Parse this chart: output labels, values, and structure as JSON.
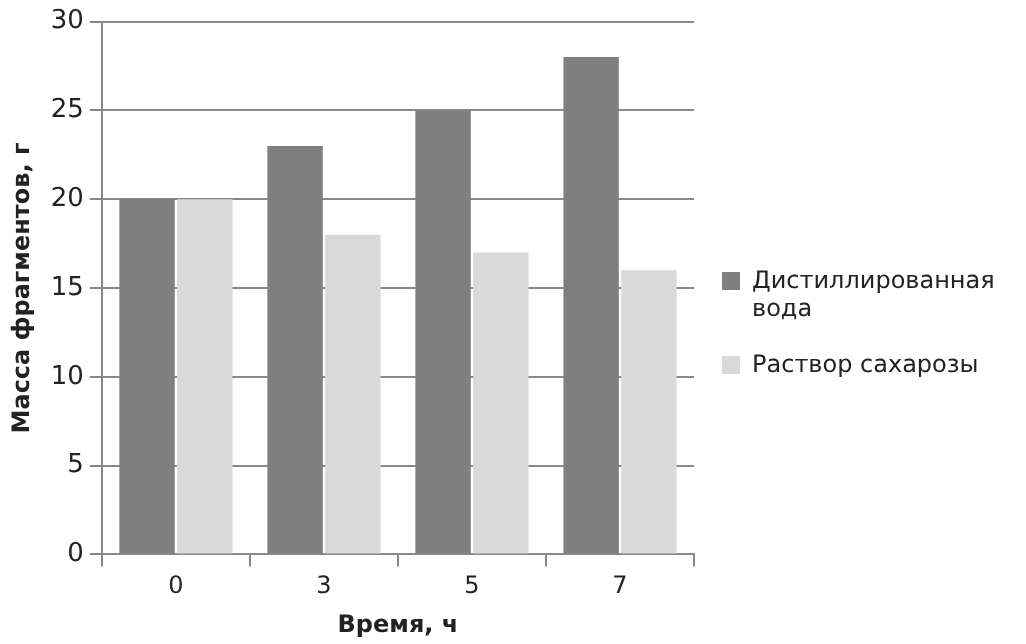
{
  "chart_data": {
    "type": "bar",
    "xlabel": "Время, ч",
    "ylabel": "Масса фрагментов, г",
    "categories": [
      "0",
      "3",
      "5",
      "7"
    ],
    "series": [
      {
        "name": "Дистиллированная вода",
        "color": "#7f7f7f",
        "values": [
          20,
          23,
          25,
          28
        ]
      },
      {
        "name": "Раствор сахарозы",
        "color": "#d9d9d9",
        "values": [
          20,
          18,
          17,
          16
        ]
      }
    ],
    "ylim": [
      0,
      30
    ],
    "yticks": [
      0,
      5,
      10,
      15,
      20,
      25,
      30
    ],
    "grid": "y",
    "legend": "right"
  }
}
